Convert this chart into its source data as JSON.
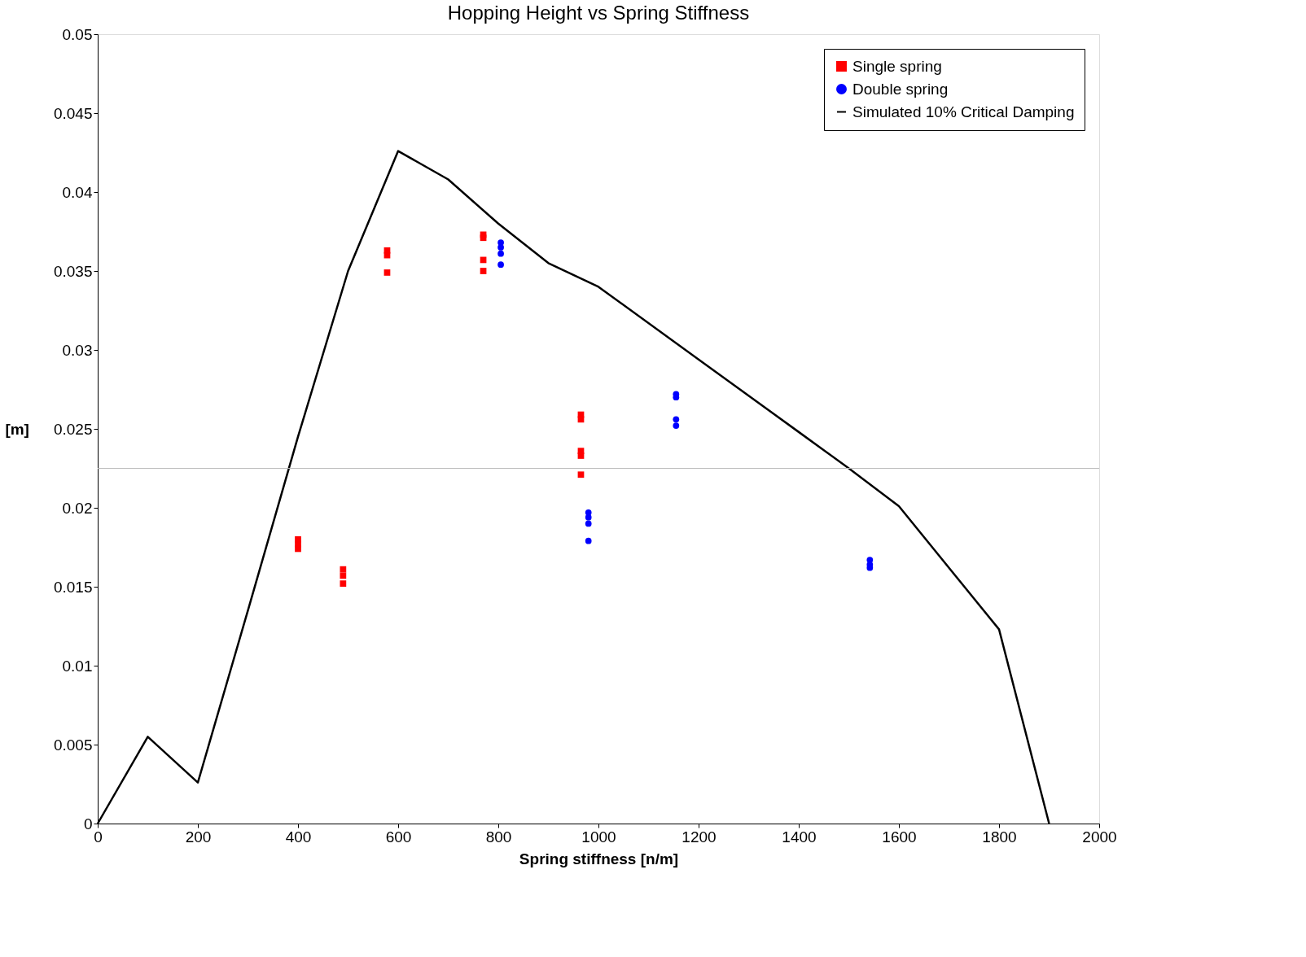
{
  "chart_data": {
    "type": "scatter",
    "title": "Hopping Height vs Spring Stiffness",
    "xlabel": "Spring stiffness [n/m]",
    "ylabel": "[m]",
    "xlim": [
      0,
      2000
    ],
    "xticks": [
      0,
      200,
      400,
      600,
      800,
      1000,
      1200,
      1400,
      1600,
      1800,
      2000
    ],
    "ylim": [
      0,
      0.05
    ],
    "yticks": [
      0,
      0.005,
      0.01,
      0.015,
      0.02,
      0.025,
      0.03,
      0.035,
      0.04,
      0.045,
      0.05
    ],
    "grid": false,
    "legend": "top right",
    "ref_lines": [
      {
        "axis": "y",
        "value": 0.0225,
        "color": "#bbbbbb"
      }
    ],
    "series": [
      {
        "name": "Single spring",
        "marker": "square",
        "color": "#ff0000",
        "x": [
          400,
          400,
          400,
          490,
          490,
          490,
          578,
          578,
          578,
          770,
          770,
          770,
          770,
          965,
          965,
          965,
          965,
          965
        ],
        "values": [
          0.018,
          0.0177,
          0.0174,
          0.0161,
          0.0157,
          0.0152,
          0.0363,
          0.036,
          0.0349,
          0.0373,
          0.0371,
          0.0357,
          0.035,
          0.0259,
          0.0256,
          0.0236,
          0.0233,
          0.0221
        ]
      },
      {
        "name": "Double spring",
        "marker": "circle",
        "color": "#0000ff",
        "x": [
          805,
          805,
          805,
          805,
          980,
          980,
          980,
          980,
          1155,
          1155,
          1155,
          1155,
          1542,
          1542,
          1542
        ],
        "values": [
          0.0368,
          0.0365,
          0.0361,
          0.0354,
          0.0197,
          0.0194,
          0.019,
          0.0179,
          0.0272,
          0.027,
          0.0256,
          0.0252,
          0.0167,
          0.0164,
          0.0162
        ]
      },
      {
        "name": "Simulated 10% Critical Damping",
        "type": "line",
        "marker": "none",
        "line_style": "solid",
        "color": "#000000",
        "x": [
          0,
          100,
          200,
          300,
          400,
          500,
          600,
          700,
          800,
          900,
          1000,
          1200,
          1400,
          1500,
          1600,
          1700,
          1800,
          1900
        ],
        "values": [
          0,
          0.0055,
          0.0026,
          0.0135,
          0.0245,
          0.035,
          0.0426,
          0.0408,
          0.038,
          0.0355,
          0.034,
          0.0294,
          0.0248,
          0.0225,
          0.0201,
          0.0162,
          0.0123,
          0
        ]
      }
    ]
  }
}
